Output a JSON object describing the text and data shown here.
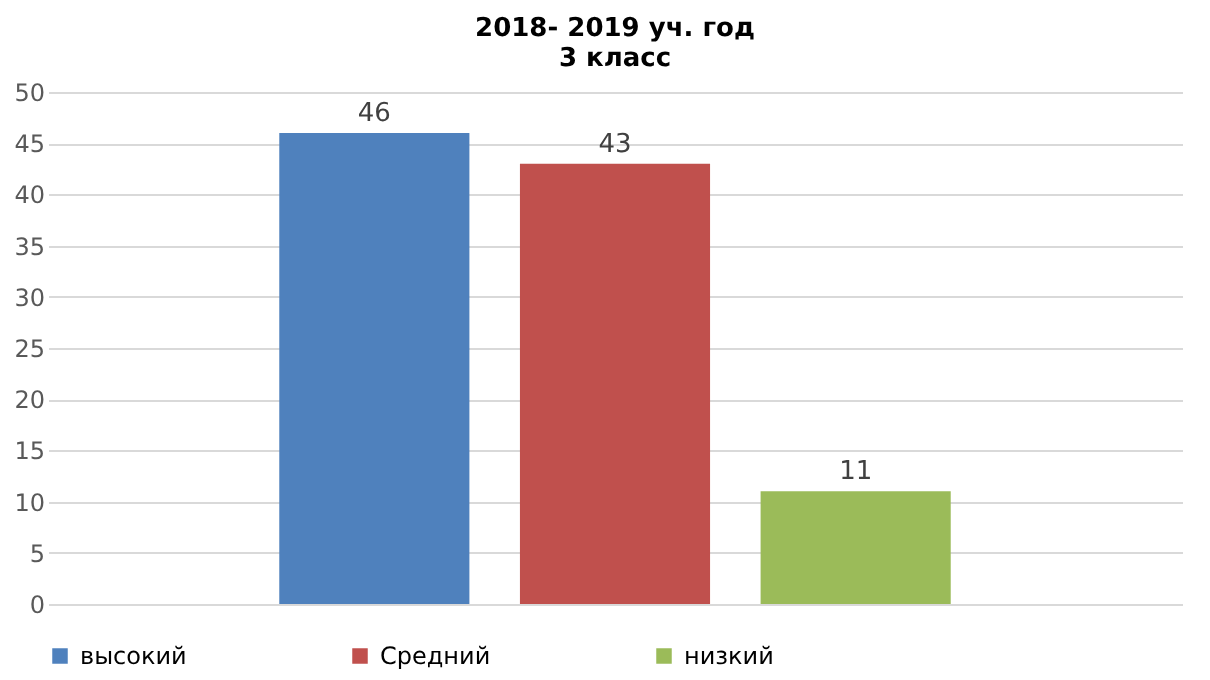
{
  "chart_data": {
    "type": "bar",
    "title": "2018- 2019 уч. год",
    "subtitle": "3 класс",
    "categories": [
      null
    ],
    "series": [
      {
        "name": "высокий",
        "color": "#4f81bd",
        "values": [
          46
        ]
      },
      {
        "name": "Средний",
        "color": "#c0504d",
        "values": [
          43
        ]
      },
      {
        "name": "низкий",
        "color": "#9bbb59",
        "values": [
          11
        ]
      }
    ],
    "ylim": [
      0,
      50
    ],
    "yticks": [
      0,
      5,
      10,
      15,
      20,
      25,
      30,
      35,
      40,
      45,
      50
    ],
    "grid": "y",
    "legend": "bottom",
    "data_labels": true
  }
}
